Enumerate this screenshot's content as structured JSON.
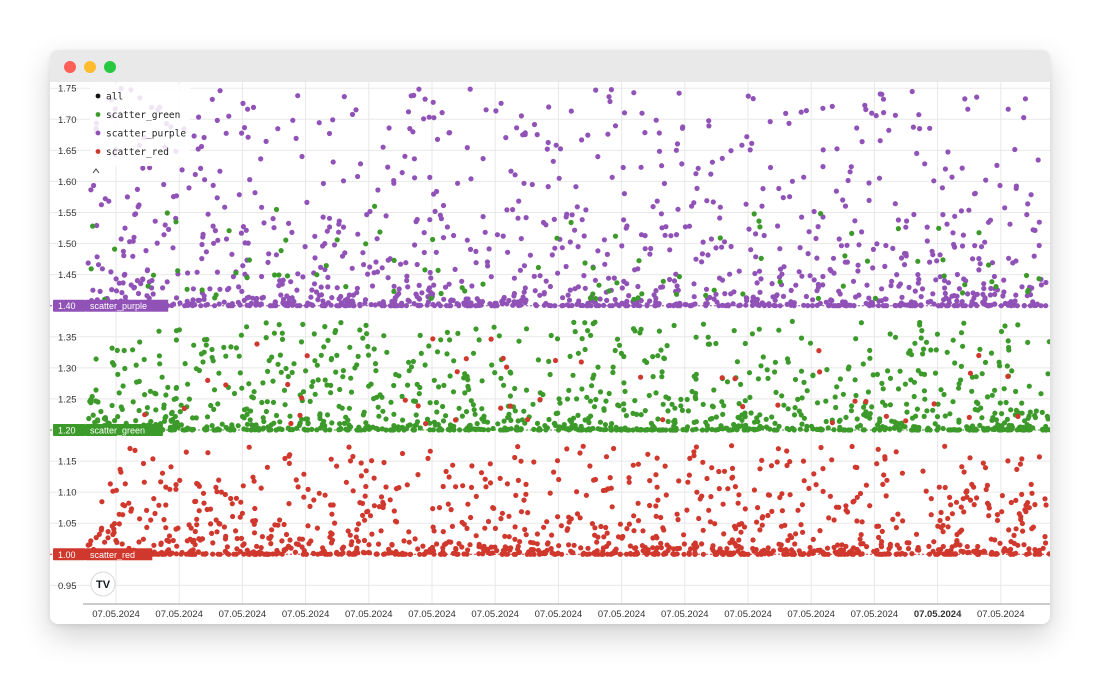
{
  "window": {
    "controls": [
      "close-control",
      "minimize-control",
      "zoom-control"
    ]
  },
  "chart_data": {
    "type": "scatter",
    "title": "",
    "xlabel": "",
    "ylabel": "",
    "ylim": [
      0.92,
      1.76
    ],
    "y_ticks": [
      "0.95",
      "1.00",
      "1.05",
      "1.10",
      "1.15",
      "1.20",
      "1.25",
      "1.30",
      "1.35",
      "1.40",
      "1.45",
      "1.50",
      "1.55",
      "1.60",
      "1.65",
      "1.70",
      "1.75"
    ],
    "x_tick_labels": [
      "07.05.2024",
      "07.05.2024",
      "07.05.2024",
      "07.05.2024",
      "07.05.2024",
      "07.05.2024",
      "07.05.2024",
      "07.05.2024",
      "07.05.2024",
      "07.05.2024",
      "07.05.2024",
      "07.05.2024",
      "07.05.2024",
      "07.05.2024",
      "07.05.2024"
    ],
    "highlighted_x_tick_index": 13,
    "grid": true,
    "legend_position": "top-left",
    "legend": [
      {
        "name": "all",
        "color": "#111111"
      },
      {
        "name": "scatter_green",
        "color": "#3c9a2a"
      },
      {
        "name": "scatter_purple",
        "color": "#9152b8"
      },
      {
        "name": "scatter_red",
        "color": "#d0382d"
      }
    ],
    "series": [
      {
        "name": "scatter_red",
        "color": "#d0382d",
        "base": 1.0,
        "max": 1.175,
        "count": 1150,
        "price_label": "1.00"
      },
      {
        "name": "scatter_green",
        "color": "#3c9a2a",
        "base": 1.2,
        "max": 1.375,
        "count": 1150,
        "price_label": "1.20"
      },
      {
        "name": "scatter_purple",
        "color": "#9152b8",
        "base": 1.4,
        "max": 1.75,
        "count": 1250,
        "price_label": "1.40"
      }
    ],
    "watermark": "TV"
  }
}
